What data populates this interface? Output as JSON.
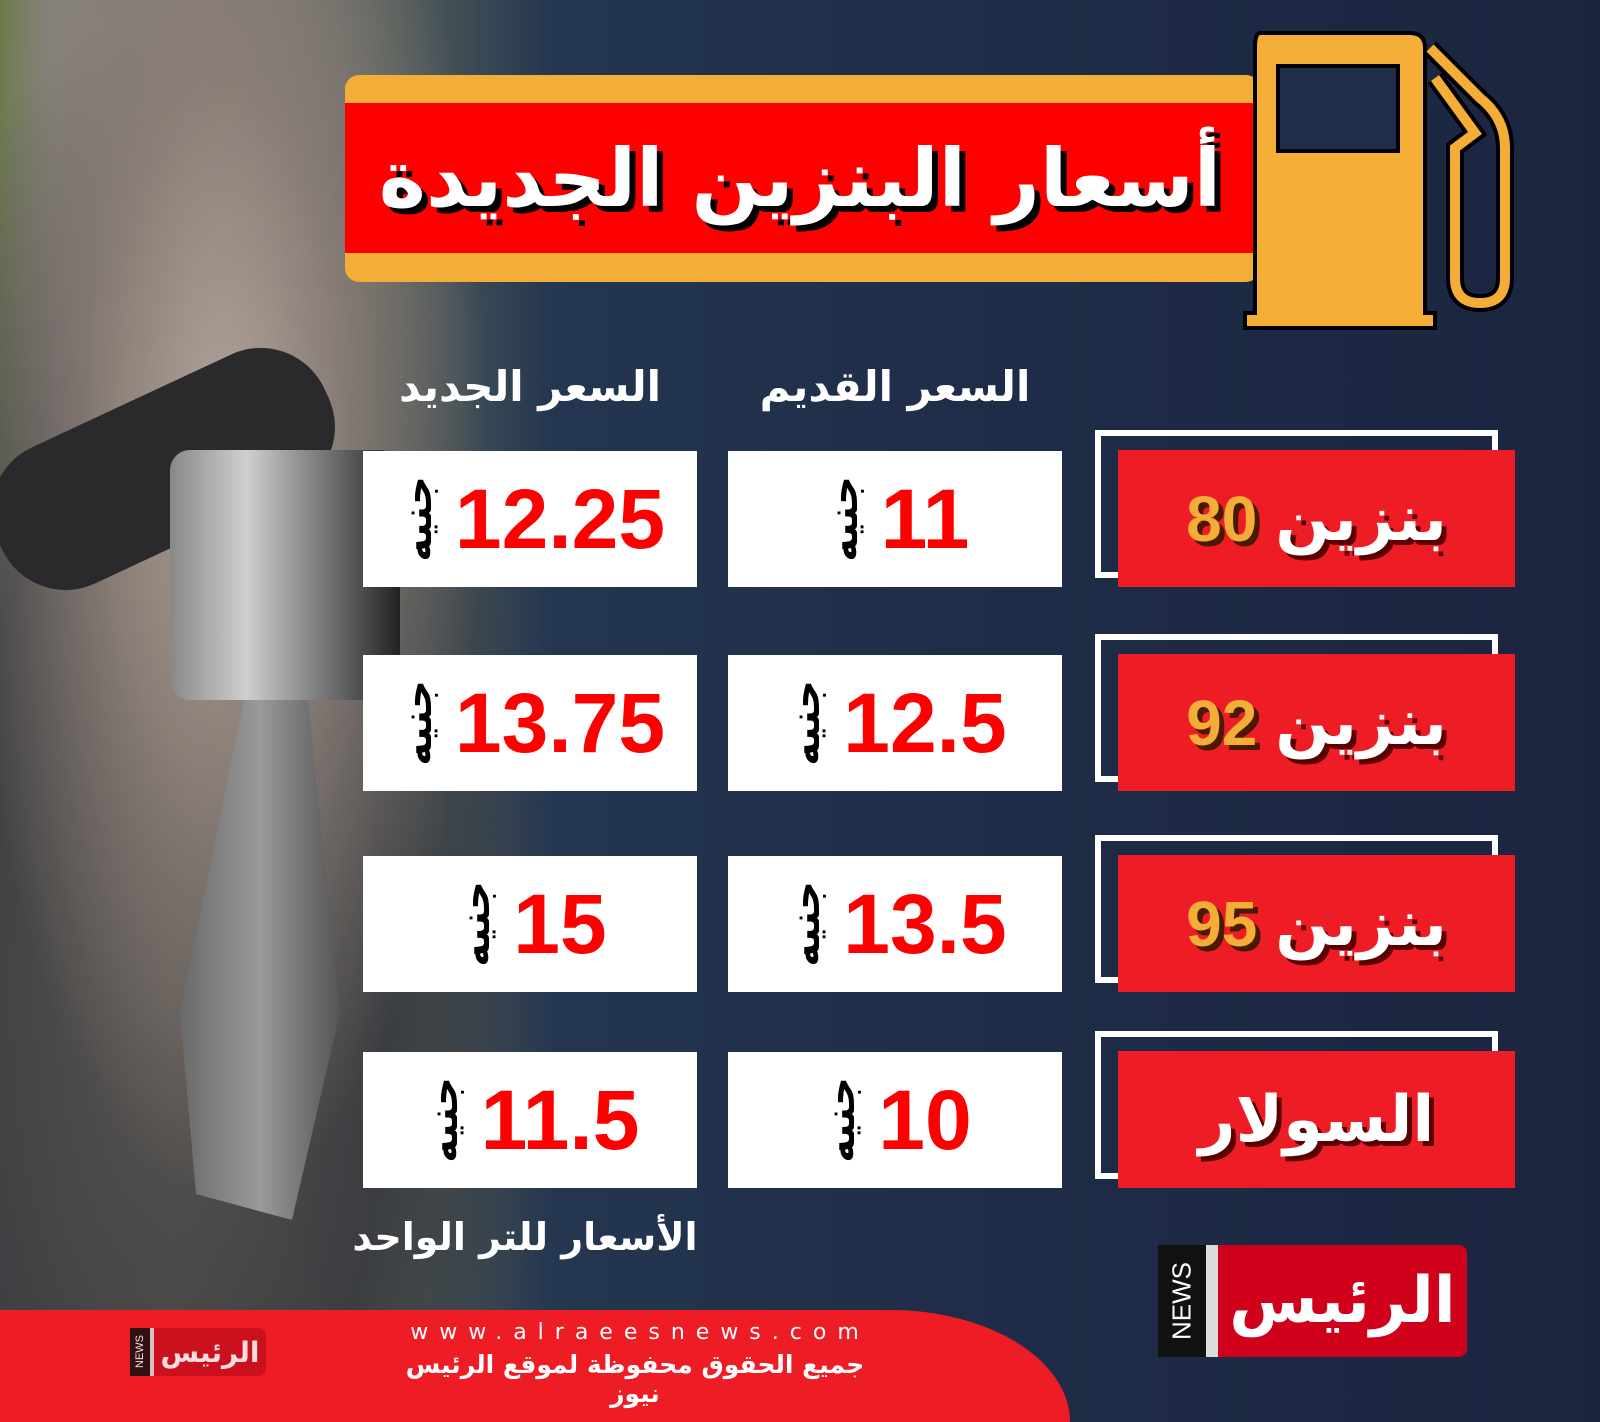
{
  "title": "أسعار البنزين الجديدة",
  "headers": {
    "old_price": "السعر القديم",
    "new_price": "السعر الجديد"
  },
  "currency": "جنيه",
  "rows": [
    {
      "label_word": "بنزين",
      "label_num": "80",
      "old": "11",
      "new": "12.25"
    },
    {
      "label_word": "بنزين",
      "label_num": "92",
      "old": "12.5",
      "new": "13.75"
    },
    {
      "label_word": "بنزين",
      "label_num": "95",
      "old": "13.5",
      "new": "15"
    },
    {
      "label_word": "السولار",
      "label_num": "",
      "old": "10",
      "new": "11.5"
    }
  ],
  "unit_note": "الأسعار للتر الواحد",
  "footer": {
    "url": "www.alraeesnews.com",
    "rights": "جميع الحقوق محفوظة لموقع الرئيس نيوز"
  },
  "logo": {
    "name": "الرئيس",
    "news": "NEWS"
  },
  "colors": {
    "red": "#ee1c25",
    "orange": "#f4ae37",
    "navy": "#1b2540"
  },
  "icons": [
    "fuel-pump-icon"
  ]
}
